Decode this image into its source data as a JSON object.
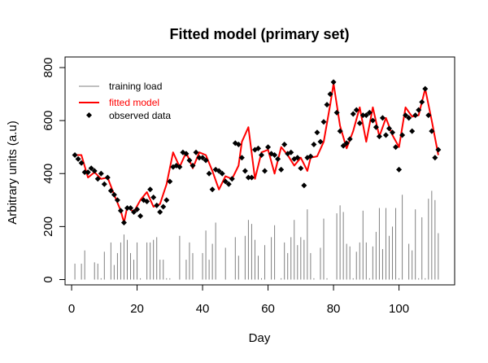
{
  "chart_data": {
    "type": "line",
    "title": "Fitted model (primary set)",
    "xlabel": "Day",
    "ylabel": "Arbitrary units (a.u)",
    "xlim": [
      -2,
      117
    ],
    "ylim": [
      -20,
      840
    ],
    "xticks": [
      0,
      20,
      40,
      60,
      80,
      100
    ],
    "yticks": [
      0,
      200,
      400,
      600,
      800
    ],
    "grid": false,
    "legend_position": "top-left",
    "colors": {
      "training_load": "#808080",
      "fitted_model": "#ff0000",
      "observed": "#000000"
    },
    "legend": [
      {
        "label": "training load",
        "style": "line",
        "color": "#808080"
      },
      {
        "label": "fitted model",
        "style": "line",
        "color": "#ff0000"
      },
      {
        "label": "observed data",
        "style": "point",
        "color": "#000000"
      }
    ],
    "series": [
      {
        "name": "training load",
        "style": "vertical-bars",
        "x": [
          1,
          3,
          4,
          7,
          8,
          9,
          10,
          12,
          13,
          14,
          15,
          16,
          17,
          18,
          19,
          20,
          21,
          23,
          24,
          25,
          26,
          27,
          28,
          29,
          30,
          33,
          35,
          36,
          37,
          40,
          41,
          42,
          43,
          44,
          47,
          50,
          51,
          53,
          54,
          55,
          56,
          57,
          58,
          59,
          61,
          62,
          64,
          65,
          66,
          67,
          68,
          69,
          70,
          71,
          72,
          73,
          74,
          76,
          77,
          78,
          81,
          82,
          83,
          84,
          85,
          86,
          87,
          88,
          89,
          90,
          91,
          92,
          93,
          94,
          95,
          96,
          97,
          98,
          99,
          100,
          101,
          103,
          104,
          105,
          106,
          107,
          108,
          109,
          110,
          111,
          112
        ],
        "values": [
          60,
          60,
          110,
          65,
          60,
          5,
          105,
          140,
          55,
          100,
          140,
          170,
          150,
          100,
          75,
          140,
          5,
          140,
          140,
          150,
          160,
          75,
          75,
          5,
          5,
          165,
          75,
          140,
          100,
          100,
          185,
          75,
          135,
          215,
          120,
          160,
          90,
          165,
          225,
          210,
          150,
          90,
          5,
          130,
          160,
          205,
          5,
          140,
          100,
          160,
          225,
          130,
          160,
          150,
          265,
          100,
          5,
          120,
          230,
          5,
          250,
          280,
          255,
          135,
          125,
          5,
          105,
          140,
          260,
          140,
          5,
          125,
          180,
          270,
          115,
          270,
          165,
          200,
          270,
          5,
          320,
          135,
          110,
          265,
          5,
          235,
          5,
          305,
          335,
          300,
          175
        ]
      },
      {
        "name": "fitted model",
        "style": "line",
        "x": [
          1,
          3,
          5,
          7,
          9,
          11,
          13,
          15,
          16,
          17,
          19,
          21,
          23,
          25,
          27,
          29,
          31,
          33,
          35,
          37,
          39,
          41,
          43,
          45,
          47,
          49,
          51,
          52,
          54,
          56,
          58,
          60,
          62,
          64,
          66,
          68,
          70,
          72,
          73,
          75,
          77,
          79,
          80,
          82,
          84,
          86,
          88,
          90,
          92,
          94,
          96,
          98,
          100,
          102,
          104,
          106,
          108,
          110,
          112
        ],
        "values": [
          470,
          470,
          385,
          405,
          380,
          385,
          320,
          260,
          215,
          275,
          255,
          300,
          330,
          275,
          285,
          360,
          480,
          425,
          480,
          420,
          480,
          470,
          410,
          340,
          390,
          380,
          430,
          520,
          575,
          380,
          480,
          490,
          400,
          500,
          470,
          430,
          460,
          410,
          460,
          465,
          520,
          660,
          740,
          580,
          495,
          560,
          650,
          520,
          650,
          540,
          610,
          545,
          500,
          650,
          615,
          620,
          720,
          600,
          470
        ]
      },
      {
        "name": "observed data",
        "style": "points",
        "x": [
          1,
          2,
          3,
          4,
          5,
          6,
          7,
          8,
          9,
          10,
          11,
          12,
          13,
          14,
          15,
          16,
          17,
          18,
          19,
          20,
          21,
          22,
          23,
          24,
          25,
          26,
          27,
          28,
          29,
          30,
          31,
          32,
          33,
          34,
          35,
          36,
          37,
          38,
          39,
          40,
          41,
          42,
          43,
          44,
          45,
          46,
          47,
          48,
          49,
          50,
          51,
          52,
          53,
          54,
          55,
          56,
          57,
          58,
          59,
          60,
          61,
          62,
          63,
          64,
          65,
          66,
          67,
          68,
          69,
          70,
          71,
          72,
          73,
          74,
          75,
          76,
          77,
          78,
          79,
          80,
          81,
          82,
          83,
          84,
          85,
          86,
          87,
          88,
          89,
          90,
          91,
          92,
          93,
          94,
          95,
          96,
          97,
          98,
          99,
          100,
          101,
          102,
          103,
          104,
          105,
          106,
          107,
          108,
          109,
          110,
          111,
          112
        ],
        "values": [
          470,
          455,
          440,
          405,
          405,
          420,
          410,
          380,
          400,
          360,
          385,
          335,
          320,
          300,
          260,
          215,
          270,
          270,
          255,
          265,
          240,
          300,
          295,
          340,
          310,
          280,
          255,
          275,
          300,
          370,
          425,
          430,
          425,
          480,
          475,
          450,
          430,
          480,
          460,
          460,
          450,
          400,
          340,
          415,
          410,
          400,
          370,
          360,
          380,
          515,
          510,
          460,
          410,
          385,
          385,
          490,
          495,
          470,
          410,
          500,
          475,
          470,
          455,
          415,
          510,
          475,
          480,
          455,
          460,
          420,
          355,
          460,
          465,
          510,
          555,
          520,
          595,
          660,
          700,
          745,
          630,
          560,
          505,
          515,
          530,
          625,
          640,
          590,
          620,
          620,
          630,
          600,
          575,
          540,
          610,
          545,
          570,
          555,
          500,
          415,
          545,
          620,
          610,
          560,
          620,
          640,
          670,
          720,
          620,
          560,
          460,
          490
        ]
      }
    ]
  }
}
